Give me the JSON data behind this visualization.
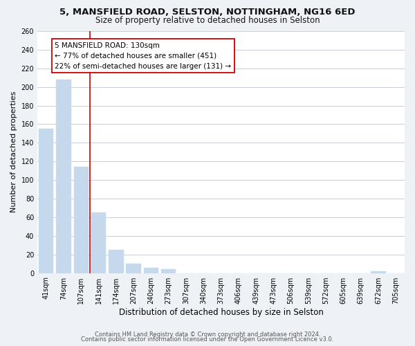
{
  "title1": "5, MANSFIELD ROAD, SELSTON, NOTTINGHAM, NG16 6ED",
  "title2": "Size of property relative to detached houses in Selston",
  "xlabel": "Distribution of detached houses by size in Selston",
  "ylabel": "Number of detached properties",
  "bar_labels": [
    "41sqm",
    "74sqm",
    "107sqm",
    "141sqm",
    "174sqm",
    "207sqm",
    "240sqm",
    "273sqm",
    "307sqm",
    "340sqm",
    "373sqm",
    "406sqm",
    "439sqm",
    "473sqm",
    "506sqm",
    "539sqm",
    "572sqm",
    "605sqm",
    "639sqm",
    "672sqm",
    "705sqm"
  ],
  "bar_values": [
    155,
    208,
    114,
    65,
    25,
    10,
    6,
    4,
    0,
    0,
    0,
    0,
    0,
    0,
    0,
    0,
    0,
    0,
    0,
    2,
    0
  ],
  "bar_color": "#c6d9ec",
  "vline_color": "#cc0000",
  "ylim": [
    0,
    260
  ],
  "yticks": [
    0,
    20,
    40,
    60,
    80,
    100,
    120,
    140,
    160,
    180,
    200,
    220,
    240,
    260
  ],
  "annotation_title": "5 MANSFIELD ROAD: 130sqm",
  "annotation_line1": "← 77% of detached houses are smaller (451)",
  "annotation_line2": "22% of semi-detached houses are larger (131) →",
  "footnote1": "Contains HM Land Registry data © Crown copyright and database right 2024.",
  "footnote2": "Contains public sector information licensed under the Open Government Licence v3.0.",
  "background_color": "#eef2f7",
  "plot_bg_color": "#ffffff",
  "grid_color": "#c0c8d4",
  "title1_fontsize": 9.5,
  "title2_fontsize": 8.5,
  "ylabel_fontsize": 8,
  "xlabel_fontsize": 8.5,
  "tick_fontsize": 7,
  "annotation_fontsize": 7.5,
  "footnote_fontsize": 6
}
